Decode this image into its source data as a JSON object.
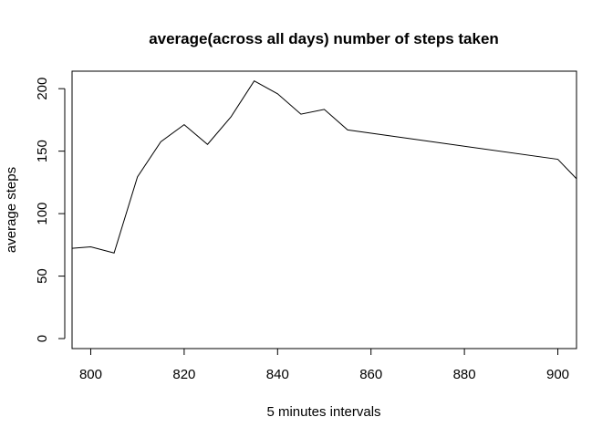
{
  "chart_data": {
    "type": "line",
    "title": "average(across all days) number of steps taken",
    "xlabel": "5 minutes intervals",
    "ylabel": "average steps",
    "xlim": [
      796,
      904
    ],
    "ylim": [
      -8,
      214
    ],
    "x_ticks": [
      800,
      820,
      840,
      860,
      880,
      900
    ],
    "y_ticks": [
      0,
      50,
      100,
      150,
      200
    ],
    "grid": false,
    "series": [
      {
        "x": [
          790,
          795,
          800,
          805,
          810,
          815,
          820,
          825,
          830,
          835,
          840,
          845,
          850,
          855,
          900,
          905
        ],
        "y": [
          70,
          72,
          73.4,
          68.5,
          129.4,
          157.5,
          171.2,
          155.4,
          177.3,
          206.2,
          195.9,
          179.6,
          183.4,
          167,
          143.5,
          124
        ]
      }
    ]
  }
}
